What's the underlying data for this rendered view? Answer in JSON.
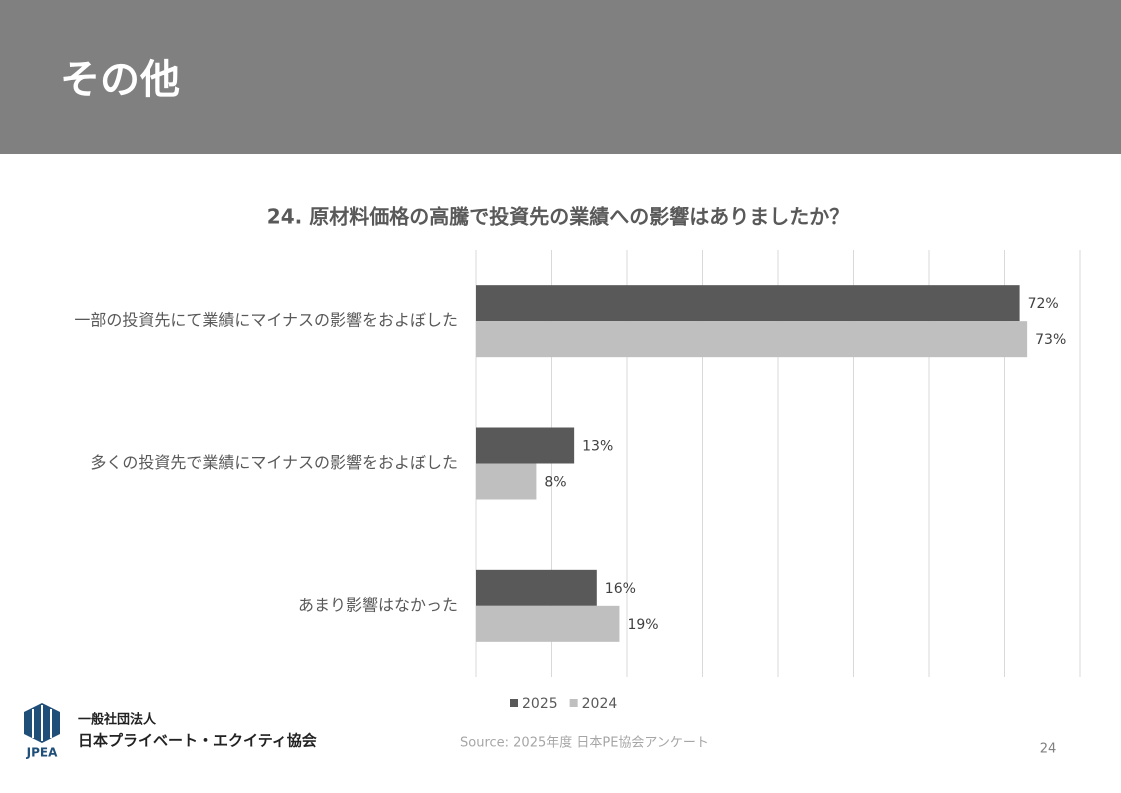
{
  "header": {
    "title": "その他"
  },
  "chart_data": {
    "type": "hbar",
    "title": "24.  原材料価格の高騰で投資先の業績への影響はありましたか？",
    "categories": [
      "一部の投資先にて業績にマイナスの影響をおよぼした",
      "多くの投資先で業績にマイナスの影響をおよぼした",
      "あまり影響はなかった"
    ],
    "series": [
      {
        "name": "2025",
        "color": "#595959",
        "values": [
          72,
          13,
          16
        ],
        "value_labels": [
          "72%",
          "13%",
          "16%"
        ]
      },
      {
        "name": "2024",
        "color": "#bfbfbf",
        "values": [
          73,
          8,
          19
        ],
        "value_labels": [
          "73%",
          "8%",
          "19%"
        ]
      }
    ],
    "xlim": [
      0,
      80
    ],
    "xticks": [
      0,
      10,
      20,
      30,
      40,
      50,
      60,
      70,
      80
    ],
    "grid": true,
    "legend": "bottom"
  },
  "footer": {
    "source": "Source: 2025年度 日本PE協会アンケート",
    "page": "24",
    "logo_mark": "JPEA",
    "org_type": "一般社団法人",
    "org_name": "日本プライベート・エクイティ協会"
  }
}
